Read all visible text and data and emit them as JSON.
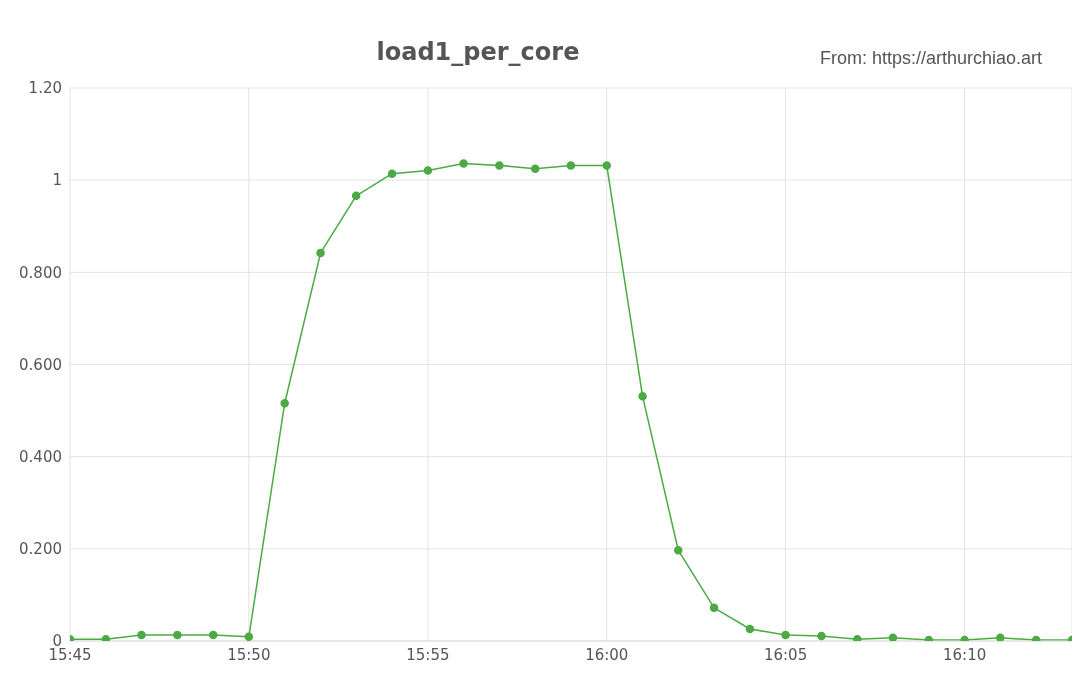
{
  "chart_data": {
    "type": "line",
    "title": "load1_per_core",
    "annotations": [
      "From: https://arthurchiao.art"
    ],
    "x": [
      15.75,
      15.7667,
      15.7833,
      15.8,
      15.8167,
      15.8333,
      15.85,
      15.8667,
      15.8833,
      15.9,
      15.9167,
      15.9333,
      15.95,
      15.9667,
      15.9833,
      16,
      16.0167,
      16.0333,
      16.05,
      16.0667,
      16.0833,
      16.1,
      16.1167,
      16.1333,
      16.15,
      16.1667,
      16.1833,
      16.2,
      16.2167
    ],
    "series": [
      {
        "color": "#4caa44",
        "values": [
          0.004,
          0.004,
          0.013,
          0.013,
          0.013,
          0.009,
          0.516,
          0.842,
          0.966,
          1.014,
          1.021,
          1.036,
          1.032,
          1.025,
          1.032,
          1.032,
          0.531,
          0.197,
          0.072,
          0.026,
          0.013,
          0.011,
          0.004,
          0.007,
          0.002,
          0.002,
          0.007,
          0.002,
          0.002
        ]
      }
    ],
    "xlim": [
      15.75,
      16.2167
    ],
    "xticks": [
      {
        "value": 15.75,
        "label": "15:45"
      },
      {
        "value": 15.8333,
        "label": "15:50"
      },
      {
        "value": 15.9167,
        "label": "15:55"
      },
      {
        "value": 16,
        "label": "16:00"
      },
      {
        "value": 16.0833,
        "label": "16:05"
      },
      {
        "value": 16.1667,
        "label": "16:10"
      }
    ],
    "ylim": [
      0,
      1.2
    ],
    "yticks": [
      0,
      {
        "value": 0.2,
        "label": "0.200"
      },
      {
        "value": 0.4,
        "label": "0.400"
      },
      {
        "value": 0.6,
        "label": "0.600"
      },
      {
        "value": 0.8,
        "label": "0.800"
      },
      1,
      {
        "value": 1.2,
        "label": "1.20"
      }
    ],
    "grid": true,
    "marker": "circle",
    "line_style": "solid",
    "legend": false
  }
}
